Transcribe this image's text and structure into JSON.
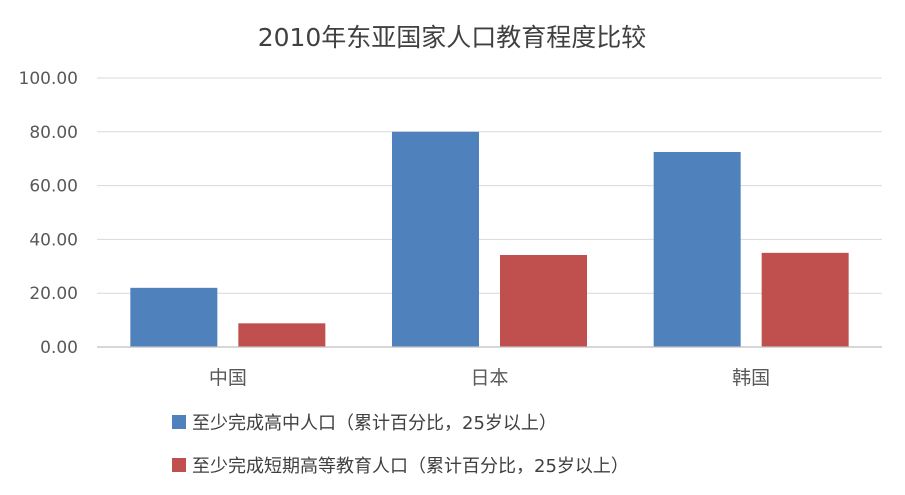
{
  "chart_data": {
    "type": "bar",
    "title": "2010年东亚国家人口教育程度比较",
    "categories": [
      "中国",
      "日本",
      "韩国"
    ],
    "series": [
      {
        "name": "至少完成高中人口（累计百分比，25岁以上）",
        "color": "#4f81bd",
        "values": [
          22.0,
          80.0,
          72.5
        ]
      },
      {
        "name": "至少完成短期高等教育人口（累计百分比，25岁以上）",
        "color": "#c0504d",
        "values": [
          8.8,
          34.2,
          35.0
        ]
      }
    ],
    "ylim": [
      0,
      100
    ],
    "yticks": [
      "0.00",
      "20.00",
      "40.00",
      "60.00",
      "80.00",
      "100.00"
    ],
    "ytick_values": [
      0,
      20,
      40,
      60,
      80,
      100
    ],
    "xlabel": "",
    "ylabel": "",
    "grid": true,
    "legend_position": "bottom"
  }
}
